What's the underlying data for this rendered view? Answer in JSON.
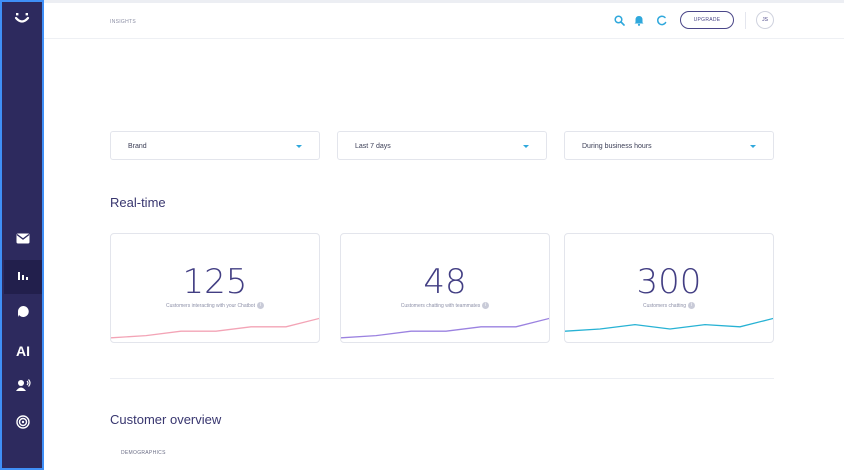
{
  "header": {
    "breadcrumb": "INSIGHTS",
    "upgrade_label": "UPGRADE",
    "avatar_initials": "JS",
    "icons": [
      "search-icon",
      "bell-icon",
      "loading-spinner-icon"
    ]
  },
  "sidebar": {
    "logo": "brand-logo-icon",
    "items": [
      {
        "icon": "mail-icon",
        "active": false
      },
      {
        "icon": "bar-chart-icon",
        "active": true
      },
      {
        "icon": "chat-bubble-icon",
        "active": false
      },
      {
        "icon": "ai-icon",
        "label": "AI",
        "active": false
      },
      {
        "icon": "contacts-icon",
        "active": false
      },
      {
        "icon": "target-icon",
        "active": false
      }
    ]
  },
  "filters": [
    {
      "label": "Brand"
    },
    {
      "label": "Last 7 days"
    },
    {
      "label": "During business hours"
    }
  ],
  "realtime": {
    "title": "Real-time",
    "cards": [
      {
        "value": "125",
        "caption": "Customers interacting with your Chatbot",
        "color": "#f3a4b6",
        "sparkline": [
          1,
          2,
          4,
          4,
          6,
          6,
          10
        ]
      },
      {
        "value": "48",
        "caption": "Customers chatting with teammates",
        "color": "#9b82e0",
        "sparkline": [
          1,
          2,
          4,
          4,
          6,
          6,
          10
        ]
      },
      {
        "value": "300",
        "caption": "Customers chatting",
        "color": "#27b2d4",
        "sparkline": [
          4,
          5,
          7,
          5,
          7,
          6,
          10
        ]
      }
    ]
  },
  "overview": {
    "title": "Customer overview",
    "subtitle": "DEMOGRAPHICS"
  },
  "colors": {
    "sidebar_bg": "#2d2a5e",
    "accent": "#2fa8dc",
    "primary_text": "#423e83"
  }
}
